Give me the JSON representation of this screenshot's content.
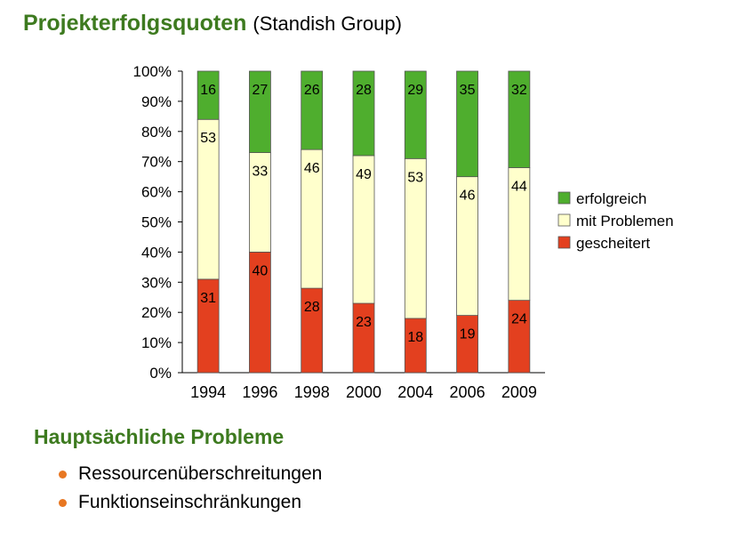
{
  "header": {
    "title": "Projekterfolgsquoten",
    "subtitle": "(Standish Group)"
  },
  "chart_data": {
    "type": "bar",
    "stacked": true,
    "categories": [
      "1994",
      "1996",
      "1998",
      "2000",
      "2004",
      "2006",
      "2009"
    ],
    "series": [
      {
        "name": "gescheitert",
        "color": "#e3401f",
        "values": [
          31,
          40,
          28,
          23,
          18,
          19,
          24
        ]
      },
      {
        "name": "mit Problemen",
        "color": "#ffffcc",
        "values": [
          53,
          33,
          46,
          49,
          53,
          46,
          44
        ]
      },
      {
        "name": "erfolgreich",
        "color": "#4fae2e",
        "values": [
          16,
          27,
          26,
          28,
          29,
          35,
          32
        ]
      }
    ],
    "ylim": [
      0,
      100
    ],
    "yticks": [
      "0%",
      "10%",
      "20%",
      "30%",
      "40%",
      "50%",
      "60%",
      "70%",
      "80%",
      "90%",
      "100%"
    ],
    "grid": false,
    "legend": "right",
    "legend_order": [
      "erfolgreich",
      "mit Problemen",
      "gescheitert"
    ]
  },
  "section": {
    "title": "Hauptsächliche Probleme",
    "bullets": [
      "Ressourcenüberschreitungen",
      "Funktionseinschränkungen"
    ]
  },
  "colors": {
    "heading": "#3d7a1f",
    "bullet": "#e87722"
  }
}
